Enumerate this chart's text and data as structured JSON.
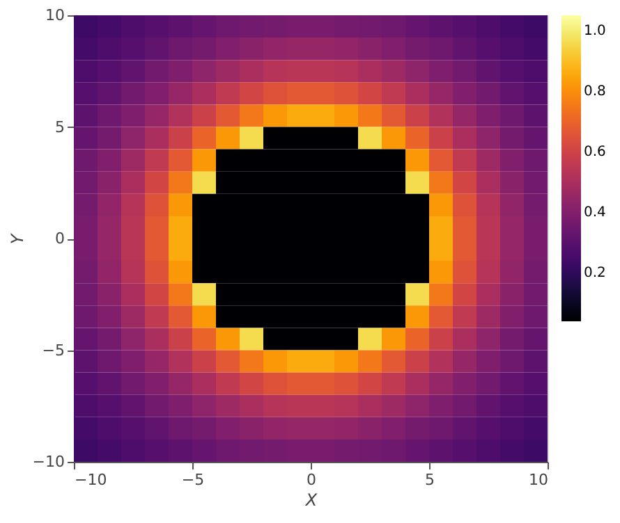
{
  "chart_data": {
    "type": "heatmap",
    "xlabel": "X",
    "ylabel": "Y",
    "x": [
      -9.5,
      -8.5,
      -7.5,
      -6.5,
      -5.5,
      -4.5,
      -3.5,
      -2.5,
      -1.5,
      -0.5,
      0.5,
      1.5,
      2.5,
      3.5,
      4.5,
      5.5,
      6.5,
      7.5,
      8.5,
      9.5
    ],
    "cells": [
      [
        0.23,
        0.25,
        0.27,
        0.29,
        0.31,
        0.33,
        0.35,
        0.36,
        0.37,
        0.38,
        0.38,
        0.37,
        0.36,
        0.35,
        0.33,
        0.31,
        0.29,
        0.27,
        0.25,
        0.23
      ],
      [
        0.25,
        0.27,
        0.29,
        0.32,
        0.35,
        0.37,
        0.4,
        0.42,
        0.44,
        0.45,
        0.45,
        0.44,
        0.42,
        0.4,
        0.37,
        0.35,
        0.32,
        0.29,
        0.27,
        0.25
      ],
      [
        0.27,
        0.29,
        0.32,
        0.36,
        0.39,
        0.43,
        0.47,
        0.5,
        0.53,
        0.54,
        0.54,
        0.53,
        0.5,
        0.47,
        0.43,
        0.39,
        0.36,
        0.32,
        0.29,
        0.27
      ],
      [
        0.29,
        0.32,
        0.36,
        0.4,
        0.45,
        0.5,
        0.56,
        0.61,
        0.65,
        0.67,
        0.67,
        0.65,
        0.61,
        0.56,
        0.5,
        0.45,
        0.4,
        0.36,
        0.32,
        0.29
      ],
      [
        0.31,
        0.35,
        0.39,
        0.45,
        0.52,
        0.59,
        0.67,
        0.75,
        0.82,
        0.86,
        0.86,
        0.82,
        0.75,
        0.67,
        0.59,
        0.52,
        0.45,
        0.39,
        0.35,
        0.31
      ],
      [
        0.33,
        0.37,
        0.43,
        0.5,
        0.59,
        0.7,
        0.82,
        0.96,
        0.04,
        0.04,
        0.04,
        0.04,
        0.96,
        0.82,
        0.7,
        0.59,
        0.5,
        0.43,
        0.37,
        0.33
      ],
      [
        0.35,
        0.4,
        0.47,
        0.56,
        0.67,
        0.82,
        0.04,
        0.04,
        0.04,
        0.04,
        0.04,
        0.04,
        0.04,
        0.04,
        0.82,
        0.67,
        0.56,
        0.47,
        0.4,
        0.35
      ],
      [
        0.36,
        0.42,
        0.5,
        0.61,
        0.75,
        0.96,
        0.04,
        0.04,
        0.04,
        0.04,
        0.04,
        0.04,
        0.04,
        0.04,
        0.96,
        0.75,
        0.61,
        0.5,
        0.42,
        0.36
      ],
      [
        0.37,
        0.44,
        0.53,
        0.65,
        0.82,
        0.04,
        0.04,
        0.04,
        0.04,
        0.04,
        0.04,
        0.04,
        0.04,
        0.04,
        0.04,
        0.82,
        0.65,
        0.53,
        0.44,
        0.37
      ],
      [
        0.38,
        0.45,
        0.54,
        0.67,
        0.86,
        0.04,
        0.04,
        0.04,
        0.04,
        0.04,
        0.04,
        0.04,
        0.04,
        0.04,
        0.04,
        0.86,
        0.67,
        0.54,
        0.45,
        0.38
      ],
      [
        0.38,
        0.45,
        0.54,
        0.67,
        0.86,
        0.04,
        0.04,
        0.04,
        0.04,
        0.04,
        0.04,
        0.04,
        0.04,
        0.04,
        0.04,
        0.86,
        0.67,
        0.54,
        0.45,
        0.38
      ],
      [
        0.37,
        0.44,
        0.53,
        0.65,
        0.82,
        0.04,
        0.04,
        0.04,
        0.04,
        0.04,
        0.04,
        0.04,
        0.04,
        0.04,
        0.04,
        0.82,
        0.65,
        0.53,
        0.44,
        0.37
      ],
      [
        0.36,
        0.42,
        0.5,
        0.61,
        0.75,
        0.96,
        0.04,
        0.04,
        0.04,
        0.04,
        0.04,
        0.04,
        0.04,
        0.04,
        0.96,
        0.75,
        0.61,
        0.5,
        0.42,
        0.36
      ],
      [
        0.35,
        0.4,
        0.47,
        0.56,
        0.67,
        0.82,
        0.04,
        0.04,
        0.04,
        0.04,
        0.04,
        0.04,
        0.04,
        0.04,
        0.82,
        0.67,
        0.56,
        0.47,
        0.4,
        0.35
      ],
      [
        0.33,
        0.37,
        0.43,
        0.5,
        0.59,
        0.7,
        0.82,
        0.96,
        0.04,
        0.04,
        0.04,
        0.04,
        0.96,
        0.82,
        0.7,
        0.59,
        0.5,
        0.43,
        0.37,
        0.33
      ],
      [
        0.31,
        0.35,
        0.39,
        0.45,
        0.52,
        0.59,
        0.67,
        0.75,
        0.82,
        0.86,
        0.86,
        0.82,
        0.75,
        0.67,
        0.59,
        0.52,
        0.45,
        0.39,
        0.35,
        0.31
      ],
      [
        0.29,
        0.32,
        0.36,
        0.4,
        0.45,
        0.5,
        0.56,
        0.61,
        0.65,
        0.67,
        0.67,
        0.65,
        0.61,
        0.56,
        0.5,
        0.45,
        0.4,
        0.36,
        0.32,
        0.29
      ],
      [
        0.27,
        0.29,
        0.32,
        0.36,
        0.39,
        0.43,
        0.47,
        0.5,
        0.53,
        0.54,
        0.54,
        0.53,
        0.5,
        0.47,
        0.43,
        0.39,
        0.36,
        0.32,
        0.29,
        0.27
      ],
      [
        0.25,
        0.27,
        0.29,
        0.32,
        0.35,
        0.37,
        0.4,
        0.42,
        0.44,
        0.45,
        0.45,
        0.44,
        0.42,
        0.4,
        0.37,
        0.35,
        0.32,
        0.29,
        0.27,
        0.25
      ],
      [
        0.23,
        0.25,
        0.27,
        0.29,
        0.31,
        0.33,
        0.35,
        0.36,
        0.37,
        0.38,
        0.38,
        0.37,
        0.36,
        0.35,
        0.33,
        0.31,
        0.29,
        0.27,
        0.25,
        0.23
      ]
    ],
    "xlim": [
      -10,
      10
    ],
    "ylim": [
      -10,
      10
    ],
    "xticks": [
      -10,
      -5,
      0,
      5,
      10
    ],
    "yticks": [
      -10,
      -5,
      0,
      5,
      10
    ],
    "clim": [
      0.04,
      1.05
    ],
    "cticks": [
      0.2,
      0.4,
      0.6,
      0.8,
      {
        "value": 1,
        "label": "1.0"
      }
    ]
  }
}
